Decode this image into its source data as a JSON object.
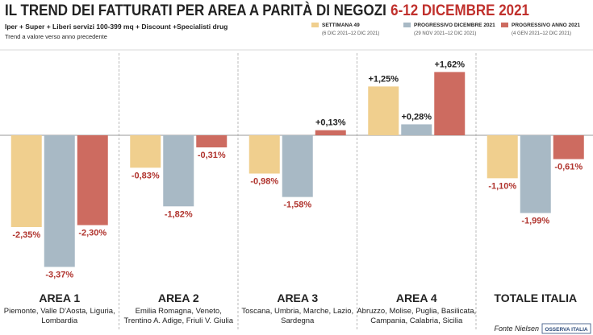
{
  "chart_data": {
    "type": "bar",
    "title": "IL TREND DEI FATTURATI PER AREA A PARITÀ DI NEGOZI",
    "title_highlight": "6-12 DICEMBRE 2021",
    "subtitle": "Iper + Super + Liberi servizi 100-399 mq + Discount +Specialisti drug",
    "note": "Trend a valore verso anno precedente",
    "source": "Fonte Nielsen",
    "logo": "OSSERVA ITALIA",
    "categories": [
      "AREA 1",
      "AREA 2",
      "AREA 3",
      "AREA 4",
      "TOTALE ITALIA"
    ],
    "category_notes": [
      [
        "Piemonte, Valle D'Aosta, Liguria,",
        "Lombardia"
      ],
      [
        "Emilia Romagna, Veneto,",
        "Trentino A. Adige, Friuli V. Giulia"
      ],
      [
        "Toscana, Umbria, Marche, Lazio,",
        "Sardegna"
      ],
      [
        "Abruzzo, Molise, Puglia, Basilicata,",
        "Campania, Calabria, Sicilia"
      ],
      []
    ],
    "series": [
      {
        "name": "SETTIMANA 49",
        "period": "(6 DIC 2021–12 DIC 2021)",
        "color": "#f0cf8e",
        "values": [
          -2.35,
          -0.83,
          -0.98,
          1.25,
          -1.1
        ],
        "value_labels": [
          "-2,35%",
          "-0,83%",
          "-0,98%",
          "+1,25%",
          "-1,10%"
        ]
      },
      {
        "name": "PROGRESSIVO DICEMBRE 2021",
        "period": "(29 NOV 2021–12 DIC 2021)",
        "color": "#a8b9c5",
        "values": [
          -3.37,
          -1.82,
          -1.58,
          0.28,
          -1.99
        ],
        "value_labels": [
          "-3,37%",
          "-1,82%",
          "-1,58%",
          "+0,28%",
          "-1,99%"
        ]
      },
      {
        "name": "PROGRESSIVO ANNO 2021",
        "period": "(4 GEN 2021–12 DIC 2021)",
        "color": "#cd6b60",
        "values": [
          -2.3,
          -0.31,
          0.13,
          1.62,
          -0.61
        ],
        "value_labels": [
          "-2,30%",
          "-0,31%",
          "+0,13%",
          "+1,62%",
          "-0,61%"
        ]
      }
    ]
  }
}
